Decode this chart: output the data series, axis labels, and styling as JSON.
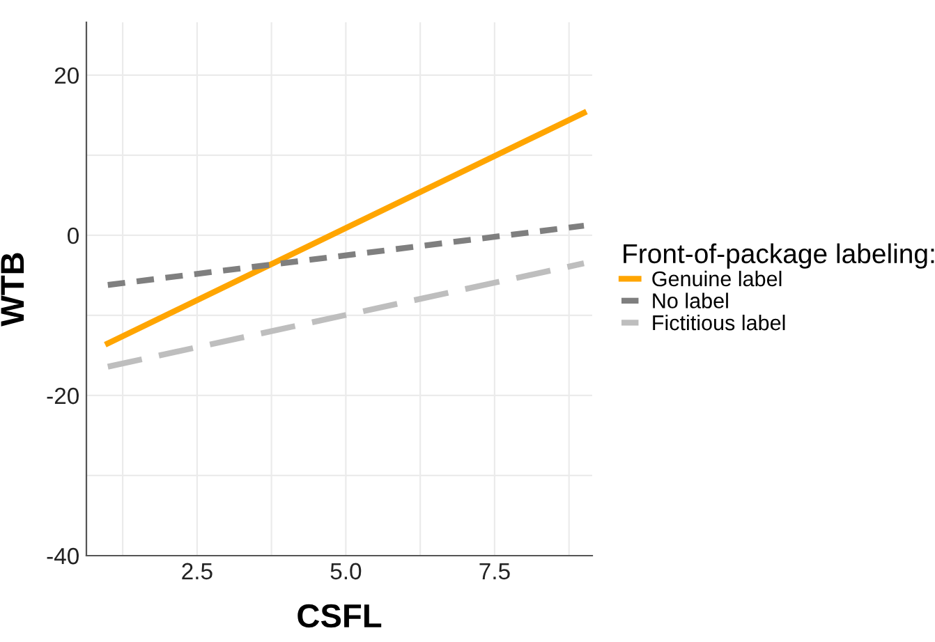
{
  "chart_data": {
    "type": "line",
    "xlabel": "CSFL",
    "ylabel": "WTB",
    "legend_title": "Front-of-package labeling:",
    "legend": "right",
    "xlim": [
      0.64,
      9.14
    ],
    "ylim": [
      -40,
      26.6
    ],
    "xticks": [
      {
        "value": 1.25,
        "label": null
      },
      2.5,
      {
        "value": 3.75,
        "label": null
      },
      "5.0",
      {
        "value": 6.25,
        "label": null
      },
      7.5,
      {
        "value": 8.75,
        "label": null
      }
    ],
    "yticks": [
      -40,
      {
        "value": -30,
        "label": null
      },
      -20,
      {
        "value": -10,
        "label": null
      },
      0,
      {
        "value": 10,
        "label": null
      },
      20
    ],
    "grid": true,
    "x": [
      1,
      9
    ],
    "series": [
      {
        "name": "Genuine label",
        "color": "#ffa500",
        "line_style": "solid",
        "values": [
          -13.5,
          15.3
        ]
      },
      {
        "name": "No label",
        "color": "#7f7f7f",
        "line_style": "dotted",
        "values": [
          -6.2,
          1.2
        ]
      },
      {
        "name": "Fictitious label",
        "color": "#bebebe",
        "line_style": "dashed",
        "values": [
          -16.4,
          -3.5
        ]
      }
    ]
  }
}
